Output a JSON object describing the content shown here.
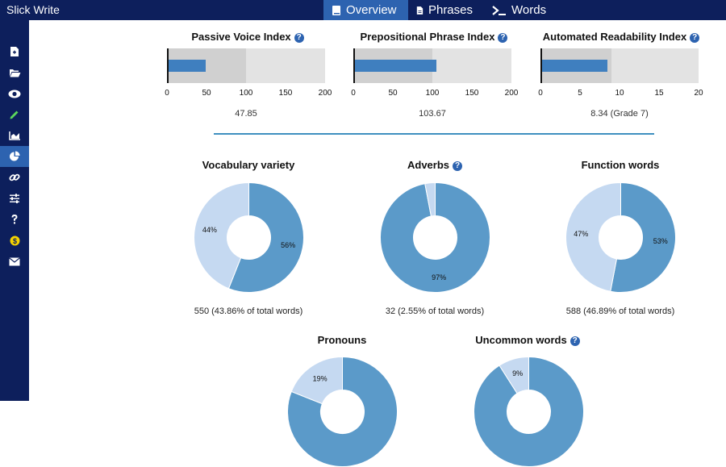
{
  "app": {
    "title": "Slick Write"
  },
  "tabs": [
    {
      "label": "Overview",
      "icon": "book-icon",
      "active": true
    },
    {
      "label": "Phrases",
      "icon": "document-icon",
      "active": false
    },
    {
      "label": "Words",
      "icon": "terminal-icon",
      "active": false
    }
  ],
  "sidebar": {
    "items": [
      {
        "icon": "new-document-icon"
      },
      {
        "icon": "folder-open-icon"
      },
      {
        "icon": "eye-icon"
      },
      {
        "icon": "pencil-icon"
      },
      {
        "icon": "area-chart-icon"
      },
      {
        "icon": "pie-chart-icon",
        "active": true
      },
      {
        "icon": "link-icon"
      },
      {
        "icon": "sliders-icon"
      },
      {
        "icon": "question-icon"
      },
      {
        "icon": "dollar-icon"
      },
      {
        "icon": "envelope-icon"
      }
    ]
  },
  "indices": [
    {
      "title": "Passive Voice Index",
      "value": 47.85,
      "value_text": "47.85",
      "range_max": 200,
      "typical_max": 100,
      "ticks": [
        "0",
        "50",
        "100",
        "150",
        "200"
      ]
    },
    {
      "title": "Prepositional Phrase Index",
      "value": 103.67,
      "value_text": "103.67",
      "range_max": 200,
      "typical_max": 100,
      "ticks": [
        "0",
        "50",
        "100",
        "150",
        "200"
      ]
    },
    {
      "title": "Automated Readability Index",
      "value": 8.34,
      "value_text": "8.34 (Grade 7)",
      "range_max": 20,
      "typical_max": 9,
      "ticks": [
        "0",
        "5",
        "10",
        "15",
        "20"
      ]
    }
  ],
  "donuts": [
    {
      "title": "Vocabulary variety",
      "help": false,
      "caption": "550 (43.86% of total words)",
      "slices": [
        {
          "percent": 56,
          "label": "56%",
          "color": "#5b9ac9"
        },
        {
          "percent": 44,
          "label": "44%",
          "color": "#c5d9f1"
        }
      ]
    },
    {
      "title": "Adverbs",
      "help": true,
      "caption": "32 (2.55% of total words)",
      "slices": [
        {
          "percent": 97,
          "label": "97%",
          "color": "#5b9ac9"
        },
        {
          "percent": 3,
          "label": "",
          "color": "#c5d9f1"
        }
      ]
    },
    {
      "title": "Function words",
      "help": false,
      "caption": "588 (46.89% of total words)",
      "slices": [
        {
          "percent": 53,
          "label": "53%",
          "color": "#5b9ac9"
        },
        {
          "percent": 47,
          "label": "47%",
          "color": "#c5d9f1"
        }
      ]
    },
    {
      "title": "Pronouns",
      "help": false,
      "caption": "",
      "slices": [
        {
          "percent": 81,
          "label": "",
          "color": "#5b9ac9"
        },
        {
          "percent": 19,
          "label": "19%",
          "color": "#c5d9f1"
        }
      ]
    },
    {
      "title": "Uncommon words",
      "help": true,
      "caption": "",
      "slices": [
        {
          "percent": 91,
          "label": "",
          "color": "#5b9ac9"
        },
        {
          "percent": 9,
          "label": "9%",
          "color": "#c5d9f1"
        }
      ]
    }
  ],
  "colors": {
    "nav": "#0d1f5c",
    "accent": "#2d63b0",
    "bar": "#3f7fbf",
    "divider": "#3f8fc0"
  }
}
